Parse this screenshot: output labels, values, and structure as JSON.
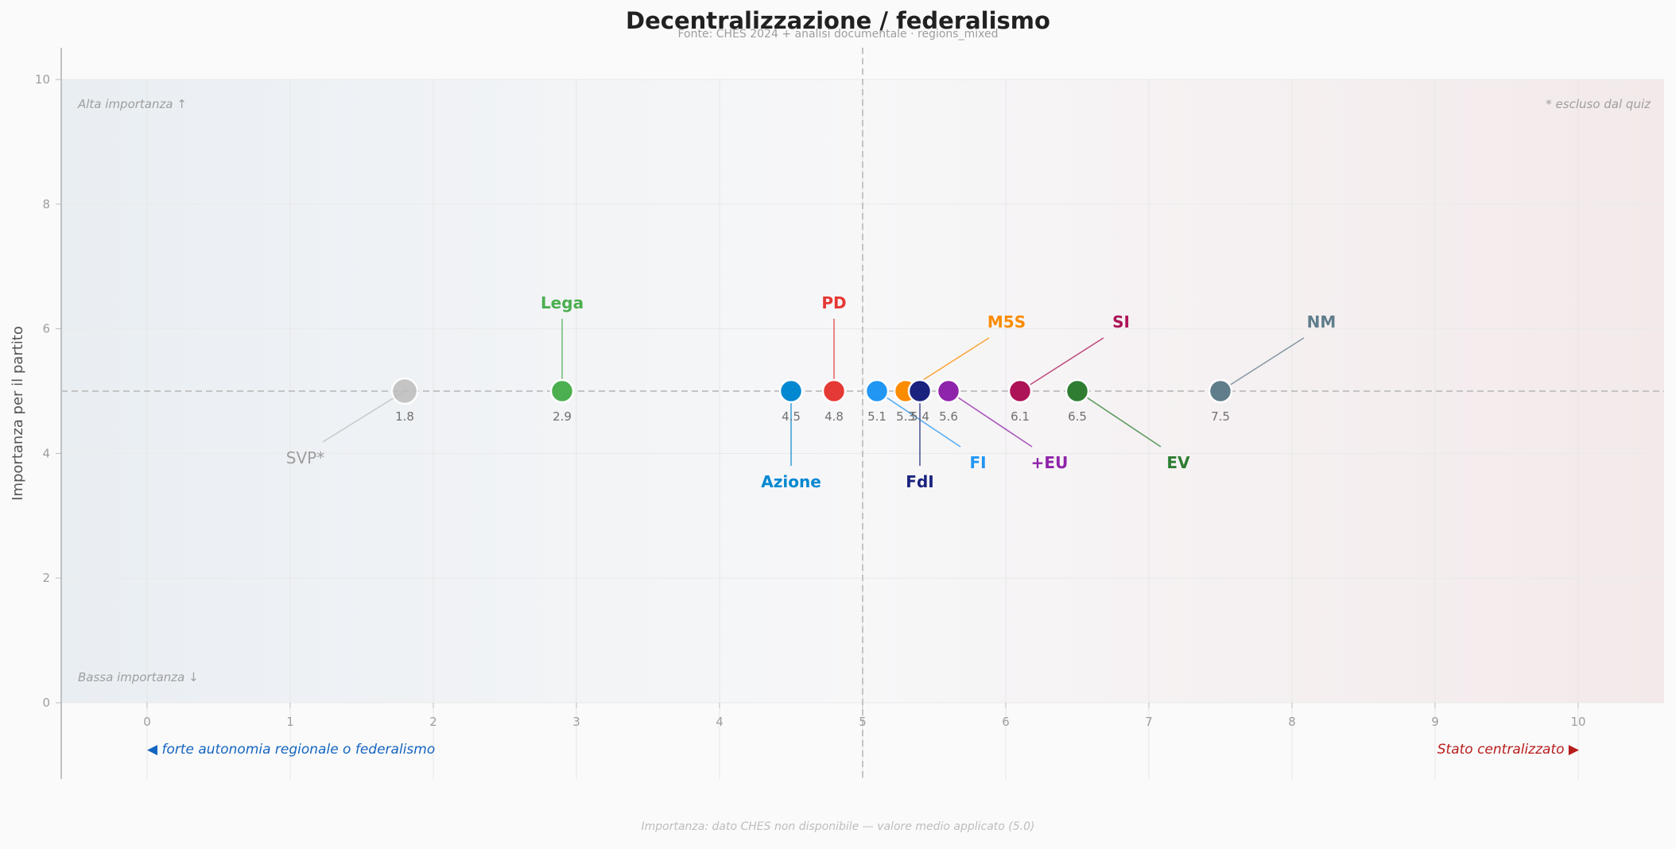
{
  "chart_data": {
    "type": "scatter",
    "title": "Decentralizzazione / federalismo",
    "subtitle": "Fonte: CHES 2024 + analisi documentale  ·  regions_mixed",
    "xlabel": "",
    "ylabel": "Importanza per il partito",
    "xlim": [
      -0.6,
      10.6
    ],
    "ylim": [
      0,
      10
    ],
    "x_ticks": [
      "0",
      "1",
      "2",
      "3",
      "4",
      "5",
      "6",
      "7",
      "8",
      "9",
      "10"
    ],
    "y_ticks": [
      "0",
      "2",
      "4",
      "6",
      "8",
      "10"
    ],
    "grid": true,
    "reference_lines": {
      "x": 5,
      "y": 5
    },
    "corner_labels": {
      "top_left": "Alta importanza ↑",
      "bottom_left": "Bassa importanza ↓",
      "top_right": "* escluso dal quiz"
    },
    "axis_poles": {
      "left": "◀  forte autonomia regionale o federalismo",
      "right": "Stato centralizzato  ▶",
      "left_color": "#1565c0",
      "right_color": "#b71c1c"
    },
    "footnote": "Importanza: dato CHES non disponibile — valore medio applicato (5.0)",
    "background_gradient": {
      "left": "#e9eef3",
      "right": "#f3e9ea"
    },
    "series": [
      {
        "name": "SVP*",
        "x": 1.8,
        "y": 5,
        "value_label": "1.8",
        "color": "#bdbdbd",
        "excluded": true
      },
      {
        "name": "Lega",
        "x": 2.9,
        "y": 5,
        "value_label": "2.9",
        "color": "#4caf50"
      },
      {
        "name": "Azione",
        "x": 4.5,
        "y": 5,
        "value_label": "4.5",
        "color": "#0288d1"
      },
      {
        "name": "PD",
        "x": 4.8,
        "y": 5,
        "value_label": "4.8",
        "color": "#e53935"
      },
      {
        "name": "FI",
        "x": 5.1,
        "y": 5,
        "value_label": "5.1",
        "color": "#2196f3"
      },
      {
        "name": "M5S",
        "x": 5.3,
        "y": 5,
        "value_label": "5.3",
        "color": "#fb8c00"
      },
      {
        "name": "FdI",
        "x": 5.4,
        "y": 5,
        "value_label": "5.4",
        "color": "#1a237e"
      },
      {
        "name": "+EU",
        "x": 5.6,
        "y": 5,
        "value_label": "5.6",
        "color": "#8e24aa"
      },
      {
        "name": "SI",
        "x": 6.1,
        "y": 5,
        "value_label": "6.1",
        "color": "#ad1457"
      },
      {
        "name": "EV",
        "x": 6.5,
        "y": 5,
        "value_label": "6.5",
        "color": "#2e7d32"
      },
      {
        "name": "NM",
        "x": 7.5,
        "y": 5,
        "value_label": "7.5",
        "color": "#607d8b"
      }
    ]
  }
}
